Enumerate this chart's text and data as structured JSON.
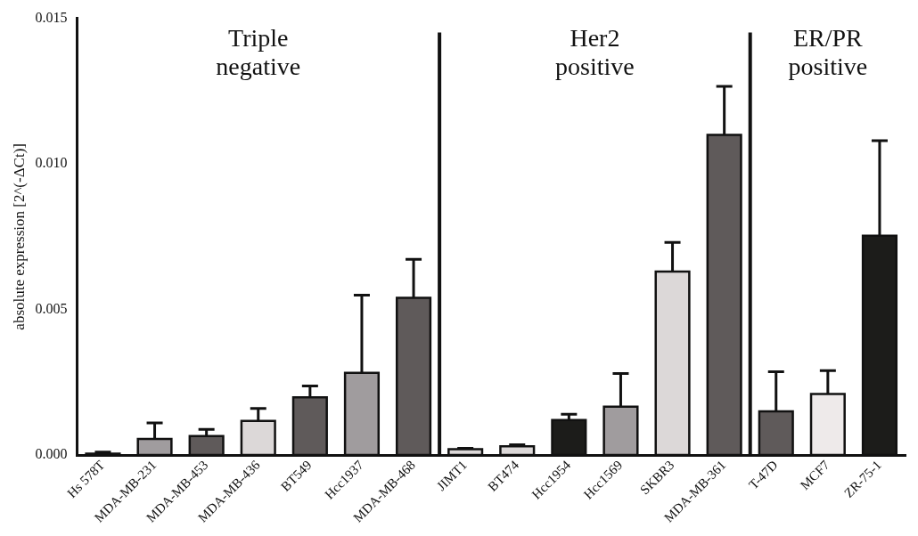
{
  "chart_data": {
    "type": "bar",
    "ylabel": "absolute expression [2^(-ΔCt)]",
    "categories": [
      "Hs 578T",
      "MDA-MB-231",
      "MDA-MB-453",
      "MDA-MB-436",
      "BT549",
      "Hcc1937",
      "MDA-MB-468",
      "JIMT1",
      "BT474",
      "Hcc1954",
      "Hcc1569",
      "SKBR3",
      "MDA-MB-361",
      "T-47D",
      "MCF7",
      "ZR-75-1"
    ],
    "values": [
      5e-05,
      0.00055,
      0.00065,
      0.00117,
      0.00198,
      0.00282,
      0.0054,
      0.0002,
      0.0003,
      0.0012,
      0.00166,
      0.0063,
      0.011,
      0.0015,
      0.0021,
      0.00753
    ],
    "errors": [
      [
        5e-05,
        0.0001
      ],
      [
        0.00055,
        0.0011
      ],
      [
        0.00065,
        0.00088
      ],
      [
        0.00117,
        0.0016
      ],
      [
        0.00198,
        0.00237
      ],
      [
        0.00282,
        0.00549
      ],
      [
        0.0054,
        0.00672
      ],
      [
        0.0002,
        0.00023
      ],
      [
        0.0003,
        0.00035
      ],
      [
        0.0012,
        0.0014
      ],
      [
        0.00166,
        0.0028
      ],
      [
        0.0063,
        0.0073
      ],
      [
        0.011,
        0.01266
      ],
      [
        0.0015,
        0.00286
      ],
      [
        0.0021,
        0.0029
      ],
      [
        0.00753,
        0.0108
      ]
    ],
    "colors": [
      "#5f5a5a",
      "#a09c9e",
      "#5f5a5a",
      "#dcd8d8",
      "#5f5a5a",
      "#a09c9e",
      "#5f5a5a",
      "#dcd8d8",
      "#dcd8d8",
      "#1c1c1a",
      "#a09c9e",
      "#dcd8d8",
      "#5f5a5a",
      "#5f5a5a",
      "#eeeaea",
      "#1c1c1a"
    ],
    "ylim": [
      0,
      0.015
    ],
    "yticks": [
      {
        "value": 0,
        "label": "0.000"
      },
      {
        "value": 0.005,
        "label": "0.005"
      },
      {
        "value": 0.01,
        "label": "0.010"
      },
      {
        "value": 0.015,
        "label": "0.015"
      }
    ],
    "annotations": [
      "Triple\nnegative",
      "Her2\npositive",
      "ER/PR\npositive"
    ],
    "grid": false,
    "legend": false
  }
}
